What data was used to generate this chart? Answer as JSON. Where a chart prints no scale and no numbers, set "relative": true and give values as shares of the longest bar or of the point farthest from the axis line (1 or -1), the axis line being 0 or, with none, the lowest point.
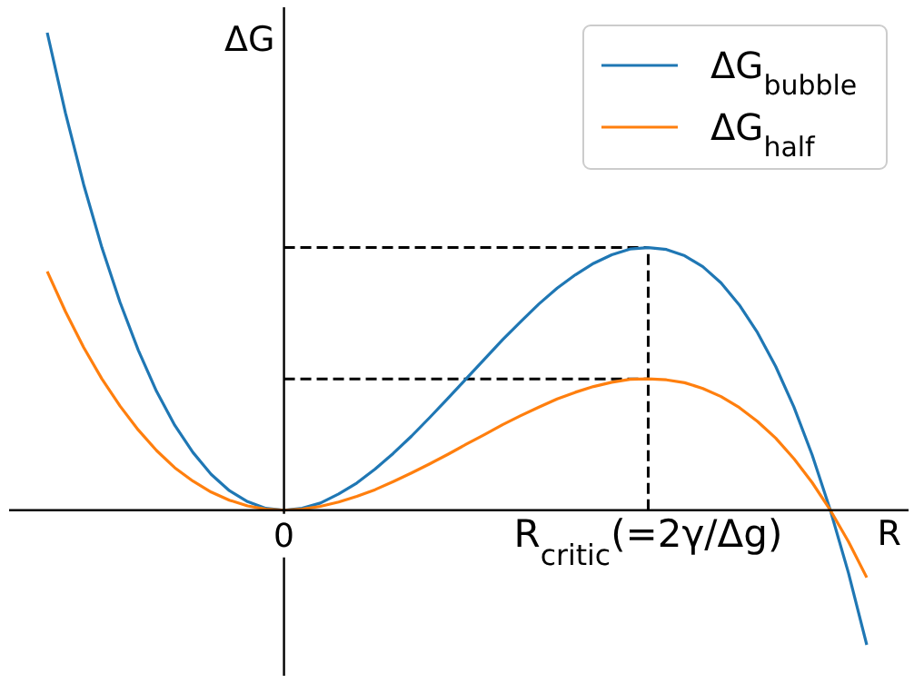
{
  "chart_data": {
    "type": "line",
    "relative": true,
    "xlabel": "R",
    "ylabel": "ΔG",
    "legend": "top right",
    "categories": [
      null,
      null,
      null,
      null,
      null,
      null,
      null,
      null,
      null,
      null,
      null,
      null,
      null,
      "0",
      null,
      null,
      null,
      null,
      null,
      null,
      null,
      null,
      null,
      null,
      null,
      null,
      null,
      null,
      null,
      null,
      null,
      null,
      null,
      "R$_{critic}$(=2γ/Δg)",
      null,
      null,
      null,
      null,
      null,
      null,
      null,
      null,
      null,
      null,
      null,
      null
    ],
    "series": [
      {
        "name": "ΔG$_{bubble}$",
        "color": "#1f77b4",
        "values": [
          1.0,
          0.832,
          0.682,
          0.55,
          0.435,
          0.335,
          0.249,
          0.178,
          0.121,
          0.075,
          0.041,
          0.018,
          0.004,
          0,
          0.004,
          0.015,
          0.034,
          0.057,
          0.086,
          0.119,
          0.155,
          0.194,
          0.234,
          0.275,
          0.316,
          0.357,
          0.395,
          0.432,
          0.465,
          0.493,
          0.517,
          0.535,
          0.547,
          0.55,
          0.546,
          0.533,
          0.51,
          0.476,
          0.43,
          0.372,
          0.301,
          0.216,
          0.116,
          0,
          -0.132,
          -0.282
        ]
      },
      {
        "name": "ΔG$_{half}$",
        "color": "#ff7f0e",
        "values": [
          0.5,
          0.416,
          0.341,
          0.275,
          0.218,
          0.168,
          0.125,
          0.089,
          0.061,
          0.038,
          0.021,
          0.009,
          0.002,
          0,
          0.002,
          0.008,
          0.017,
          0.029,
          0.043,
          0.06,
          0.078,
          0.097,
          0.117,
          0.138,
          0.158,
          0.179,
          0.198,
          0.216,
          0.233,
          0.247,
          0.259,
          0.268,
          0.274,
          0.275,
          0.273,
          0.267,
          0.255,
          0.238,
          0.215,
          0.186,
          0.151,
          0.108,
          0.058,
          0,
          -0.066,
          -0.141
        ]
      }
    ],
    "ref_lines": [
      {
        "axis": "y",
        "value": 0.55,
        "color": "#000000",
        "line_style": "dashed"
      },
      {
        "axis": "y",
        "value": 0.275,
        "color": "#000000",
        "line_style": "dashed"
      },
      {
        "axis": "x",
        "value": "R$_{critic}$(=2γ/Δg)",
        "color": "#000000",
        "line_style": "dashed"
      }
    ]
  }
}
